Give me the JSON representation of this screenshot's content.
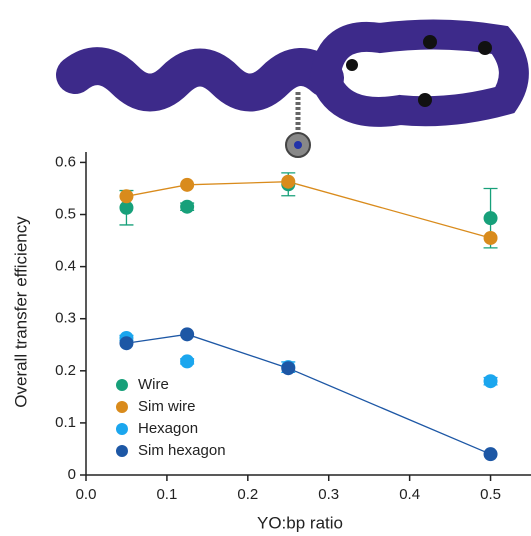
{
  "chart_data": {
    "type": "scatter",
    "x_label": "YO:bp ratio",
    "y_label": "Overall transfer efficiency",
    "xlim": [
      0,
      0.55
    ],
    "ylim": [
      0,
      0.62
    ],
    "xticks": [
      {
        "value": 0,
        "label": "0.0"
      },
      0.1,
      0.2,
      0.3,
      0.4,
      0.5
    ],
    "yticks": [
      0,
      0.1,
      0.2,
      0.3,
      0.4,
      0.5,
      0.6
    ],
    "legend": "lower-left",
    "series": [
      {
        "name": "Wire",
        "color": "#17a07a",
        "line": false,
        "x": [
          0.05,
          0.125,
          0.25,
          0.5
        ],
        "values": [
          0.513,
          0.515,
          0.558,
          0.493
        ],
        "errors": [
          0.033,
          0.007,
          0.022,
          0.057
        ]
      },
      {
        "name": "Sim wire",
        "color": "#d98b1c",
        "line": true,
        "x": [
          0.05,
          0.125,
          0.25,
          0.5
        ],
        "values": [
          0.535,
          0.557,
          0.563,
          0.455
        ]
      },
      {
        "name": "Hexagon",
        "color": "#1ba6ee",
        "line": false,
        "x": [
          0.05,
          0.125,
          0.25,
          0.5
        ],
        "values": [
          0.263,
          0.218,
          0.207,
          0.18
        ],
        "errors": [
          0.005,
          0.005,
          0.01,
          0.007
        ]
      },
      {
        "name": "Sim hexagon",
        "color": "#1d57a5",
        "line": true,
        "x": [
          0.05,
          0.125,
          0.25,
          0.5
        ],
        "values": [
          0.253,
          0.27,
          0.205,
          0.04
        ]
      }
    ]
  }
}
